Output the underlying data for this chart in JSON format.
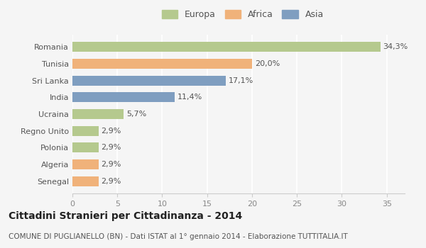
{
  "categories": [
    "Romania",
    "Tunisia",
    "Sri Lanka",
    "India",
    "Ucraina",
    "Regno Unito",
    "Polonia",
    "Algeria",
    "Senegal"
  ],
  "values": [
    34.3,
    20.0,
    17.1,
    11.4,
    5.7,
    2.9,
    2.9,
    2.9,
    2.9
  ],
  "labels": [
    "34,3%",
    "20,0%",
    "17,1%",
    "11,4%",
    "5,7%",
    "2,9%",
    "2,9%",
    "2,9%",
    "2,9%"
  ],
  "colors": [
    "#b5c98e",
    "#f0b27a",
    "#7f9ec0",
    "#7f9ec0",
    "#b5c98e",
    "#b5c98e",
    "#b5c98e",
    "#f0b27a",
    "#f0b27a"
  ],
  "legend_labels": [
    "Europa",
    "Africa",
    "Asia"
  ],
  "legend_colors": [
    "#b5c98e",
    "#f0b27a",
    "#7f9ec0"
  ],
  "xlim": [
    0,
    37
  ],
  "xticks": [
    0,
    5,
    10,
    15,
    20,
    25,
    30,
    35
  ],
  "title": "Cittadini Stranieri per Cittadinanza - 2014",
  "subtitle": "COMUNE DI PUGLIANELLO (BN) - Dati ISTAT al 1° gennaio 2014 - Elaborazione TUTTITALIA.IT",
  "bg_color": "#f5f5f5",
  "bar_height": 0.6,
  "title_fontsize": 10,
  "subtitle_fontsize": 7.5,
  "label_fontsize": 8,
  "tick_fontsize": 8,
  "legend_fontsize": 9
}
